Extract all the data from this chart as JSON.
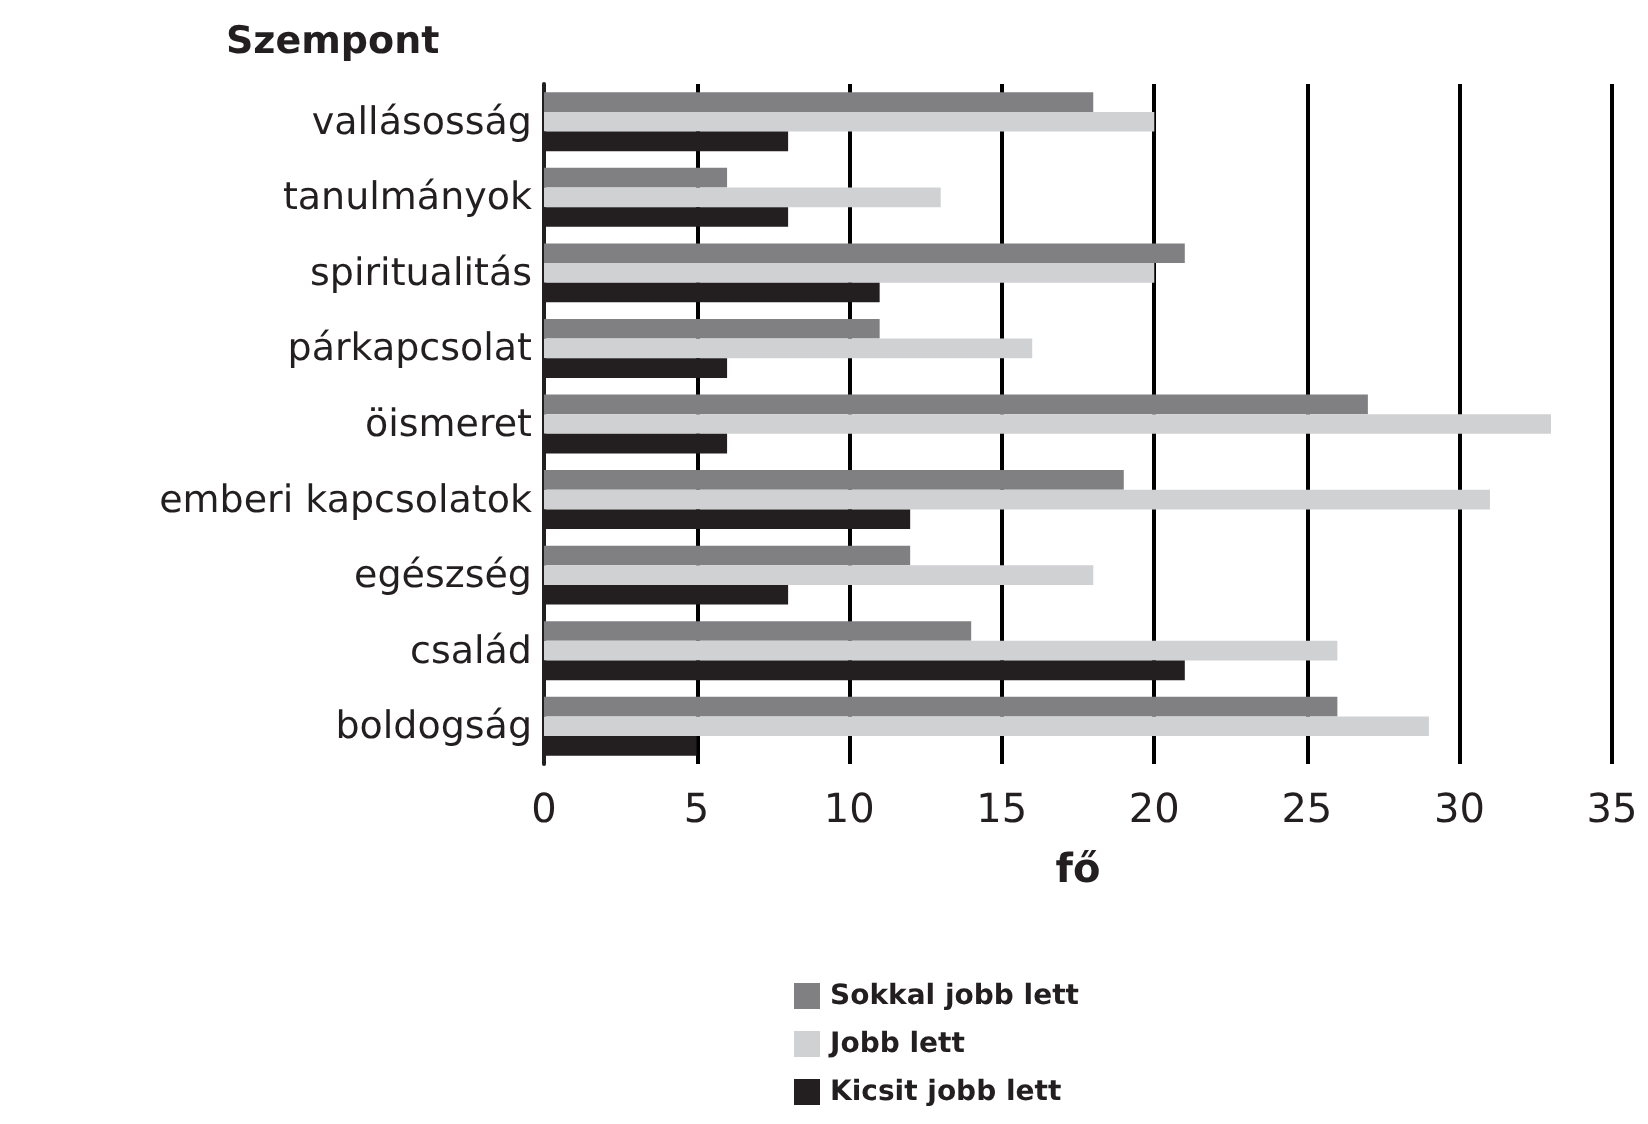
{
  "chart_data": {
    "type": "bar",
    "orientation": "horizontal",
    "ylabel": "Szempont",
    "xlabel": "fő",
    "categories": [
      "vallásosság",
      "tanulmányok",
      "spiritualitás",
      "párkapcsolat",
      "öismeret",
      "emberi kapcsolatok",
      "egészség",
      "család",
      "boldogság"
    ],
    "series": [
      {
        "name": "Sokkal jobb lett",
        "color": "#808083",
        "values": [
          18,
          6,
          21,
          11,
          27,
          19,
          12,
          14,
          26
        ]
      },
      {
        "name": "Jobb lett",
        "color": "#d0d1d3",
        "values": [
          20,
          13,
          20,
          16,
          33,
          31,
          18,
          26,
          29
        ]
      },
      {
        "name": "Kicsit jobb lett",
        "color": "#231f20",
        "values": [
          8,
          8,
          11,
          6,
          6,
          12,
          8,
          21,
          5
        ]
      }
    ],
    "xlim": [
      0,
      35
    ],
    "xticks": [
      0,
      5,
      10,
      15,
      20,
      25,
      30,
      35
    ],
    "grid": "x",
    "legend": "bottom"
  }
}
